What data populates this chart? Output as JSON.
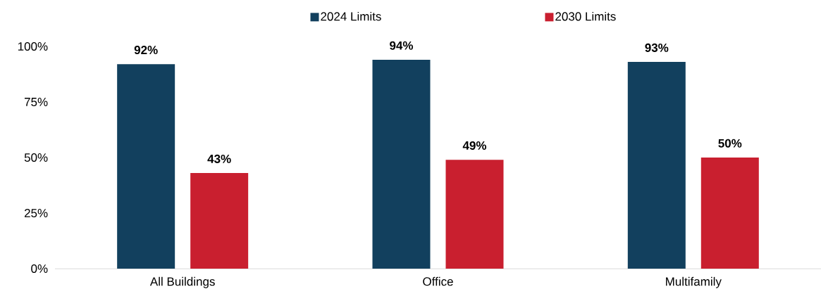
{
  "chart_data": {
    "type": "bar",
    "categories": [
      "All Buildings",
      "Office",
      "Multifamily"
    ],
    "series": [
      {
        "name": "2024 Limits",
        "color": "#12405e",
        "values": [
          92,
          94,
          93
        ],
        "value_labels": [
          "92%",
          "94%",
          "93%"
        ]
      },
      {
        "name": "2030 Limits",
        "color": "#c91f2f",
        "values": [
          43,
          49,
          50
        ],
        "value_labels": [
          "43%",
          "49%",
          "50%"
        ]
      }
    ],
    "ylim": [
      0,
      100
    ],
    "yticks": [
      {
        "value": 0,
        "label": "0%"
      },
      {
        "value": 25,
        "label": "25%"
      },
      {
        "value": 50,
        "label": "50%"
      },
      {
        "value": 75,
        "label": "75%"
      },
      {
        "value": 100,
        "label": "100%"
      }
    ],
    "legend": "top"
  }
}
